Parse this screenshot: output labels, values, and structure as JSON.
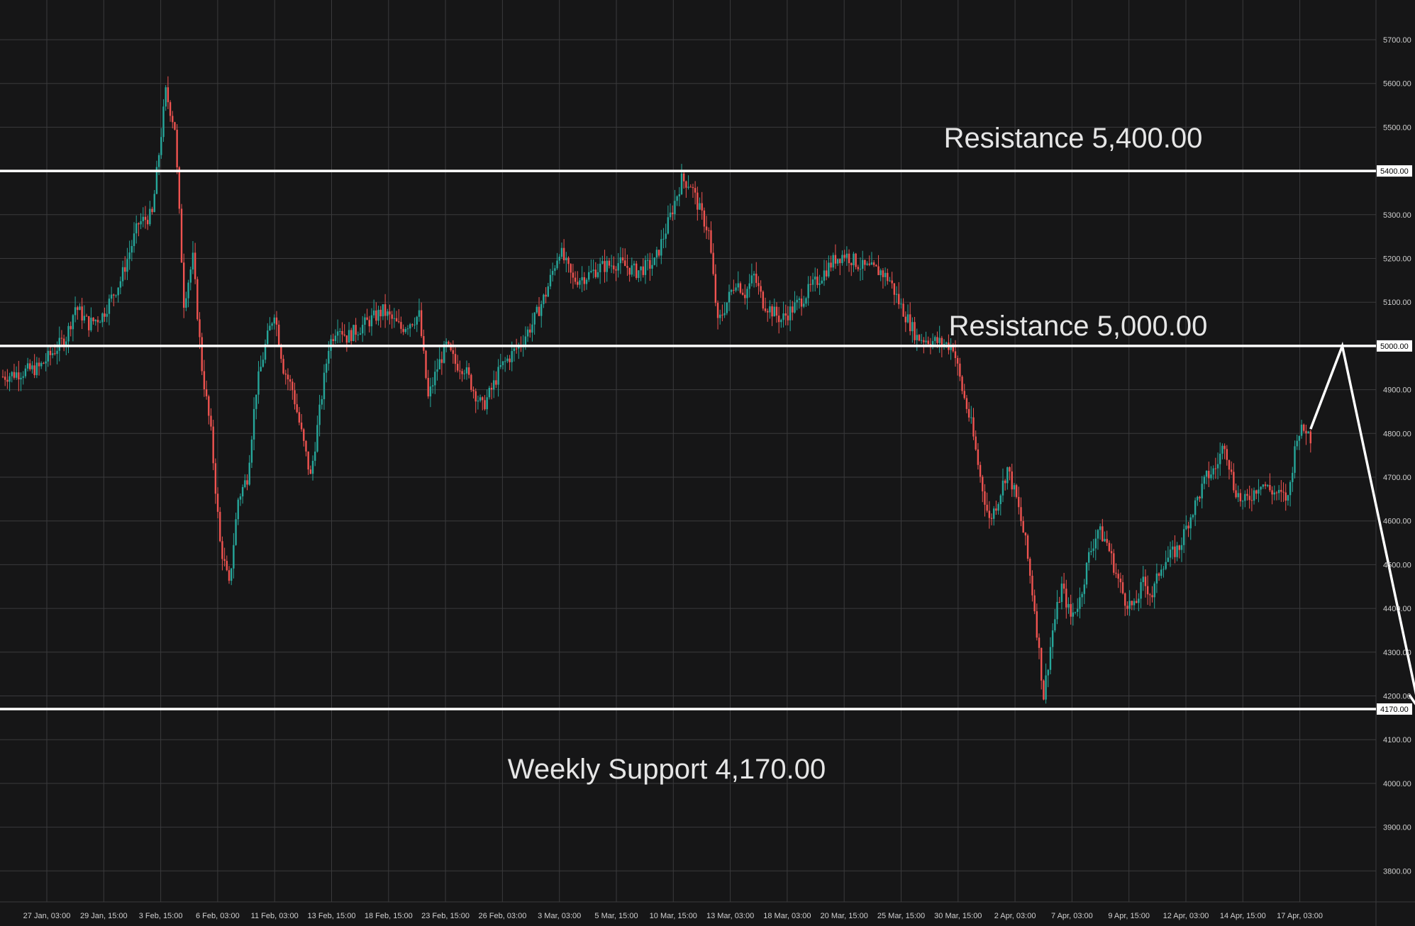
{
  "chart_data": {
    "type": "candlestick",
    "grid": true,
    "colors": {
      "background": "#161617",
      "grid": "#3a3a3c",
      "up": "#26a69a",
      "down": "#ef5350",
      "lines": "#ffffff",
      "text": "#e6e6e6"
    },
    "ylim": [
      3700,
      5800
    ],
    "y_ticks": [
      {
        "value": 3800,
        "label": "3800.00"
      },
      {
        "value": 3900,
        "label": "3900.00"
      },
      {
        "value": 4000,
        "label": "4000.00"
      },
      {
        "value": 4100,
        "label": "4100.00"
      },
      {
        "value": 4200,
        "label": "4200.00"
      },
      {
        "value": 4300,
        "label": "4300.00"
      },
      {
        "value": 4400,
        "label": "4400.00"
      },
      {
        "value": 4500,
        "label": "4500.00"
      },
      {
        "value": 4600,
        "label": "4600.00"
      },
      {
        "value": 4700,
        "label": "4700.00"
      },
      {
        "value": 4800,
        "label": "4800.00"
      },
      {
        "value": 4900,
        "label": "4900.00"
      },
      {
        "value": 5000,
        "label": "5000.00"
      },
      {
        "value": 5100,
        "label": "5100.00"
      },
      {
        "value": 5200,
        "label": "5200.00"
      },
      {
        "value": 5300,
        "label": "5300.00"
      },
      {
        "value": 5400,
        "label": "5400.00"
      },
      {
        "value": 5500,
        "label": "5500.00"
      },
      {
        "value": 5600,
        "label": "5600.00"
      },
      {
        "value": 5700,
        "label": "5700.00"
      }
    ],
    "x_ticks": [
      "27 Jan, 03:00",
      "29 Jan, 15:00",
      "3 Feb, 15:00",
      "6 Feb, 03:00",
      "11 Feb, 03:00",
      "13 Feb, 15:00",
      "18 Feb, 15:00",
      "23 Feb, 15:00",
      "26 Feb, 03:00",
      "3 Mar, 03:00",
      "5 Mar, 15:00",
      "10 Mar, 15:00",
      "13 Mar, 03:00",
      "18 Mar, 03:00",
      "20 Mar, 15:00",
      "25 Mar, 15:00",
      "30 Mar, 15:00",
      "2 Apr, 03:00",
      "7 Apr, 03:00",
      "9 Apr, 15:00",
      "12 Apr, 03:00",
      "14 Apr, 15:00",
      "17 Apr, 03:00"
    ],
    "levels": [
      {
        "value": 5400,
        "label": "Resistance 5,400.00",
        "axis_label": "5400.00"
      },
      {
        "value": 5000,
        "label": "Resistance 5,000.00",
        "axis_label": "5000.00"
      },
      {
        "value": 4170,
        "label": "Weekly Support 4,170.00",
        "axis_label": "4170.00"
      }
    ],
    "price_path": [
      [
        0,
        4930
      ],
      [
        8,
        4950
      ],
      [
        14,
        5020
      ],
      [
        16,
        5090
      ],
      [
        19,
        5050
      ],
      [
        22,
        5070
      ],
      [
        26,
        5150
      ],
      [
        30,
        5280
      ],
      [
        33,
        5300
      ],
      [
        36,
        5580
      ],
      [
        38,
        5500
      ],
      [
        40,
        5100
      ],
      [
        42,
        5200
      ],
      [
        44,
        4950
      ],
      [
        46,
        4800
      ],
      [
        48,
        4550
      ],
      [
        50,
        4450
      ],
      [
        52,
        4650
      ],
      [
        54,
        4700
      ],
      [
        56,
        4900
      ],
      [
        58,
        5000
      ],
      [
        60,
        5080
      ],
      [
        62,
        4950
      ],
      [
        64,
        4900
      ],
      [
        66,
        4800
      ],
      [
        68,
        4700
      ],
      [
        70,
        4850
      ],
      [
        72,
        5000
      ],
      [
        74,
        5050
      ],
      [
        76,
        5020
      ],
      [
        80,
        5050
      ],
      [
        84,
        5080
      ],
      [
        88,
        5040
      ],
      [
        92,
        5070
      ],
      [
        94,
        4880
      ],
      [
        96,
        4950
      ],
      [
        98,
        5000
      ],
      [
        100,
        4960
      ],
      [
        102,
        4950
      ],
      [
        104,
        4900
      ],
      [
        106,
        4860
      ],
      [
        108,
        4900
      ],
      [
        110,
        4950
      ],
      [
        114,
        5000
      ],
      [
        117,
        5050
      ],
      [
        120,
        5120
      ],
      [
        123,
        5220
      ],
      [
        126,
        5150
      ],
      [
        129,
        5160
      ],
      [
        132,
        5180
      ],
      [
        136,
        5190
      ],
      [
        140,
        5170
      ],
      [
        144,
        5190
      ],
      [
        147,
        5280
      ],
      [
        150,
        5380
      ],
      [
        152,
        5370
      ],
      [
        154,
        5310
      ],
      [
        156,
        5260
      ],
      [
        158,
        5050
      ],
      [
        160,
        5100
      ],
      [
        162,
        5150
      ],
      [
        164,
        5120
      ],
      [
        166,
        5160
      ],
      [
        168,
        5100
      ],
      [
        170,
        5080
      ],
      [
        172,
        5060
      ],
      [
        176,
        5100
      ],
      [
        180,
        5150
      ],
      [
        184,
        5200
      ],
      [
        186,
        5210
      ],
      [
        190,
        5180
      ],
      [
        194,
        5170
      ],
      [
        196,
        5150
      ],
      [
        198,
        5100
      ],
      [
        200,
        5060
      ],
      [
        202,
        5020
      ],
      [
        206,
        5010
      ],
      [
        210,
        5000
      ],
      [
        212,
        4900
      ],
      [
        214,
        4820
      ],
      [
        216,
        4700
      ],
      [
        218,
        4600
      ],
      [
        220,
        4650
      ],
      [
        222,
        4720
      ],
      [
        224,
        4650
      ],
      [
        226,
        4550
      ],
      [
        228,
        4400
      ],
      [
        230,
        4200
      ],
      [
        232,
        4350
      ],
      [
        234,
        4450
      ],
      [
        236,
        4380
      ],
      [
        238,
        4420
      ],
      [
        240,
        4520
      ],
      [
        242,
        4580
      ],
      [
        244,
        4550
      ],
      [
        246,
        4480
      ],
      [
        248,
        4420
      ],
      [
        250,
        4400
      ],
      [
        252,
        4460
      ],
      [
        254,
        4430
      ],
      [
        256,
        4500
      ],
      [
        258,
        4520
      ],
      [
        260,
        4540
      ],
      [
        262,
        4600
      ],
      [
        264,
        4650
      ],
      [
        266,
        4700
      ],
      [
        268,
        4720
      ],
      [
        270,
        4780
      ],
      [
        272,
        4680
      ],
      [
        274,
        4640
      ],
      [
        276,
        4660
      ],
      [
        278,
        4690
      ],
      [
        280,
        4670
      ],
      [
        282,
        4660
      ],
      [
        284,
        4650
      ],
      [
        286,
        4800
      ],
      [
        288,
        4810
      ],
      [
        289,
        4790
      ]
    ],
    "projection": [
      [
        289,
        4810
      ],
      [
        296,
        5000
      ],
      [
        313,
        4170
      ]
    ]
  }
}
